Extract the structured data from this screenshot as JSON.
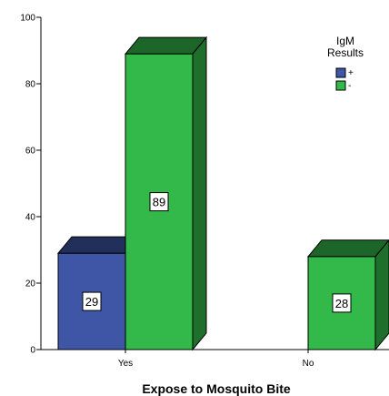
{
  "chart_data": {
    "type": "bar",
    "title": "",
    "xlabel": "Expose to Mosquito Bite",
    "ylabel": "",
    "categories": [
      "Yes",
      "No"
    ],
    "ylim": [
      0,
      100
    ],
    "yticks": [
      0,
      20,
      40,
      60,
      80,
      100
    ],
    "grid": false,
    "legend_position": "top-right",
    "legend_title": "IgM\nResults",
    "series": [
      {
        "name": "+",
        "color": "#3f55a6",
        "values": [
          29,
          null
        ],
        "labels": [
          "29",
          ""
        ]
      },
      {
        "name": "-",
        "color": "#33b94a",
        "values": [
          89,
          28
        ],
        "labels": [
          "89",
          "28"
        ]
      }
    ]
  }
}
